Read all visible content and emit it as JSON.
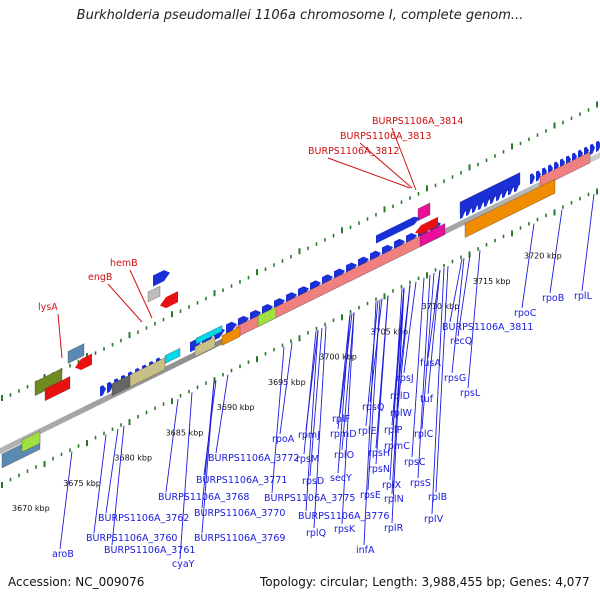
{
  "title": "Burkholderia pseudomallei 1106a chromosome I, complete genom...",
  "footer": {
    "accession_label": "Accession:",
    "accession": "NC_009076",
    "topology_label": "Topology:",
    "topology": "circular",
    "length_label": "Length:",
    "length": "3,988,455 bp",
    "genes_label": "Genes:",
    "genes": "4,077"
  },
  "colors": {
    "backbone": "#8a8a8a",
    "forward_gene": "#1a2fd6",
    "reverse_gene": "#e81010",
    "label_forward": "#1a1adf",
    "label_highlight": "#d01010",
    "ticks": "#2a7a2a",
    "rrna": "#f08080",
    "orange": "#f08c00",
    "magenta": "#e8109a",
    "olive": "#6e8a20",
    "khaki": "#c8c088",
    "cyan": "#00d8e8",
    "lime": "#a0e040",
    "steel": "#5a8ab4"
  },
  "kbp_ticks": [
    "3670 kbp",
    "3675 kbp",
    "3680 kbp",
    "3685 kbp",
    "3690 kbp",
    "3695 kbp",
    "3700 kbp",
    "3705 kbp",
    "3710 kbp",
    "3715 kbp",
    "3720 kbp"
  ],
  "upper_labels": [
    "lysA",
    "engB",
    "hemB",
    "BURPS1106A_3812",
    "BURPS1106A_3813",
    "BURPS1106A_3814"
  ],
  "lower_labels": [
    "aroB",
    "BURPS1106A_3760",
    "BURPS1106A_3761",
    "BURPS1106A_3762",
    "cyaY",
    "BURPS1106A_3768",
    "BURPS1106A_3769",
    "BURPS1106A_3770",
    "BURPS1106A_3771",
    "BURPS1106A_3772",
    "rpoA",
    "rpmJ",
    "rpsM",
    "rpsK",
    "rpsD",
    "BURPS1106A_3775",
    "BURPS1106A_3776",
    "rplQ",
    "infA",
    "rplF",
    "rpmD",
    "rplO",
    "secY",
    "rpsE",
    "rplE",
    "rplR",
    "rpsN",
    "rpsH",
    "rpsQ",
    "rplX",
    "rplN",
    "rplP",
    "rpmC",
    "rplD",
    "rplW",
    "rplC",
    "rpsJ",
    "rpsC",
    "rplV",
    "rplB",
    "rpsS",
    "tuf",
    "fusA",
    "rpsG",
    "rpsL",
    "recQ",
    "BURPS1106A_3811",
    "rpoC",
    "rpoB",
    "rplL"
  ]
}
